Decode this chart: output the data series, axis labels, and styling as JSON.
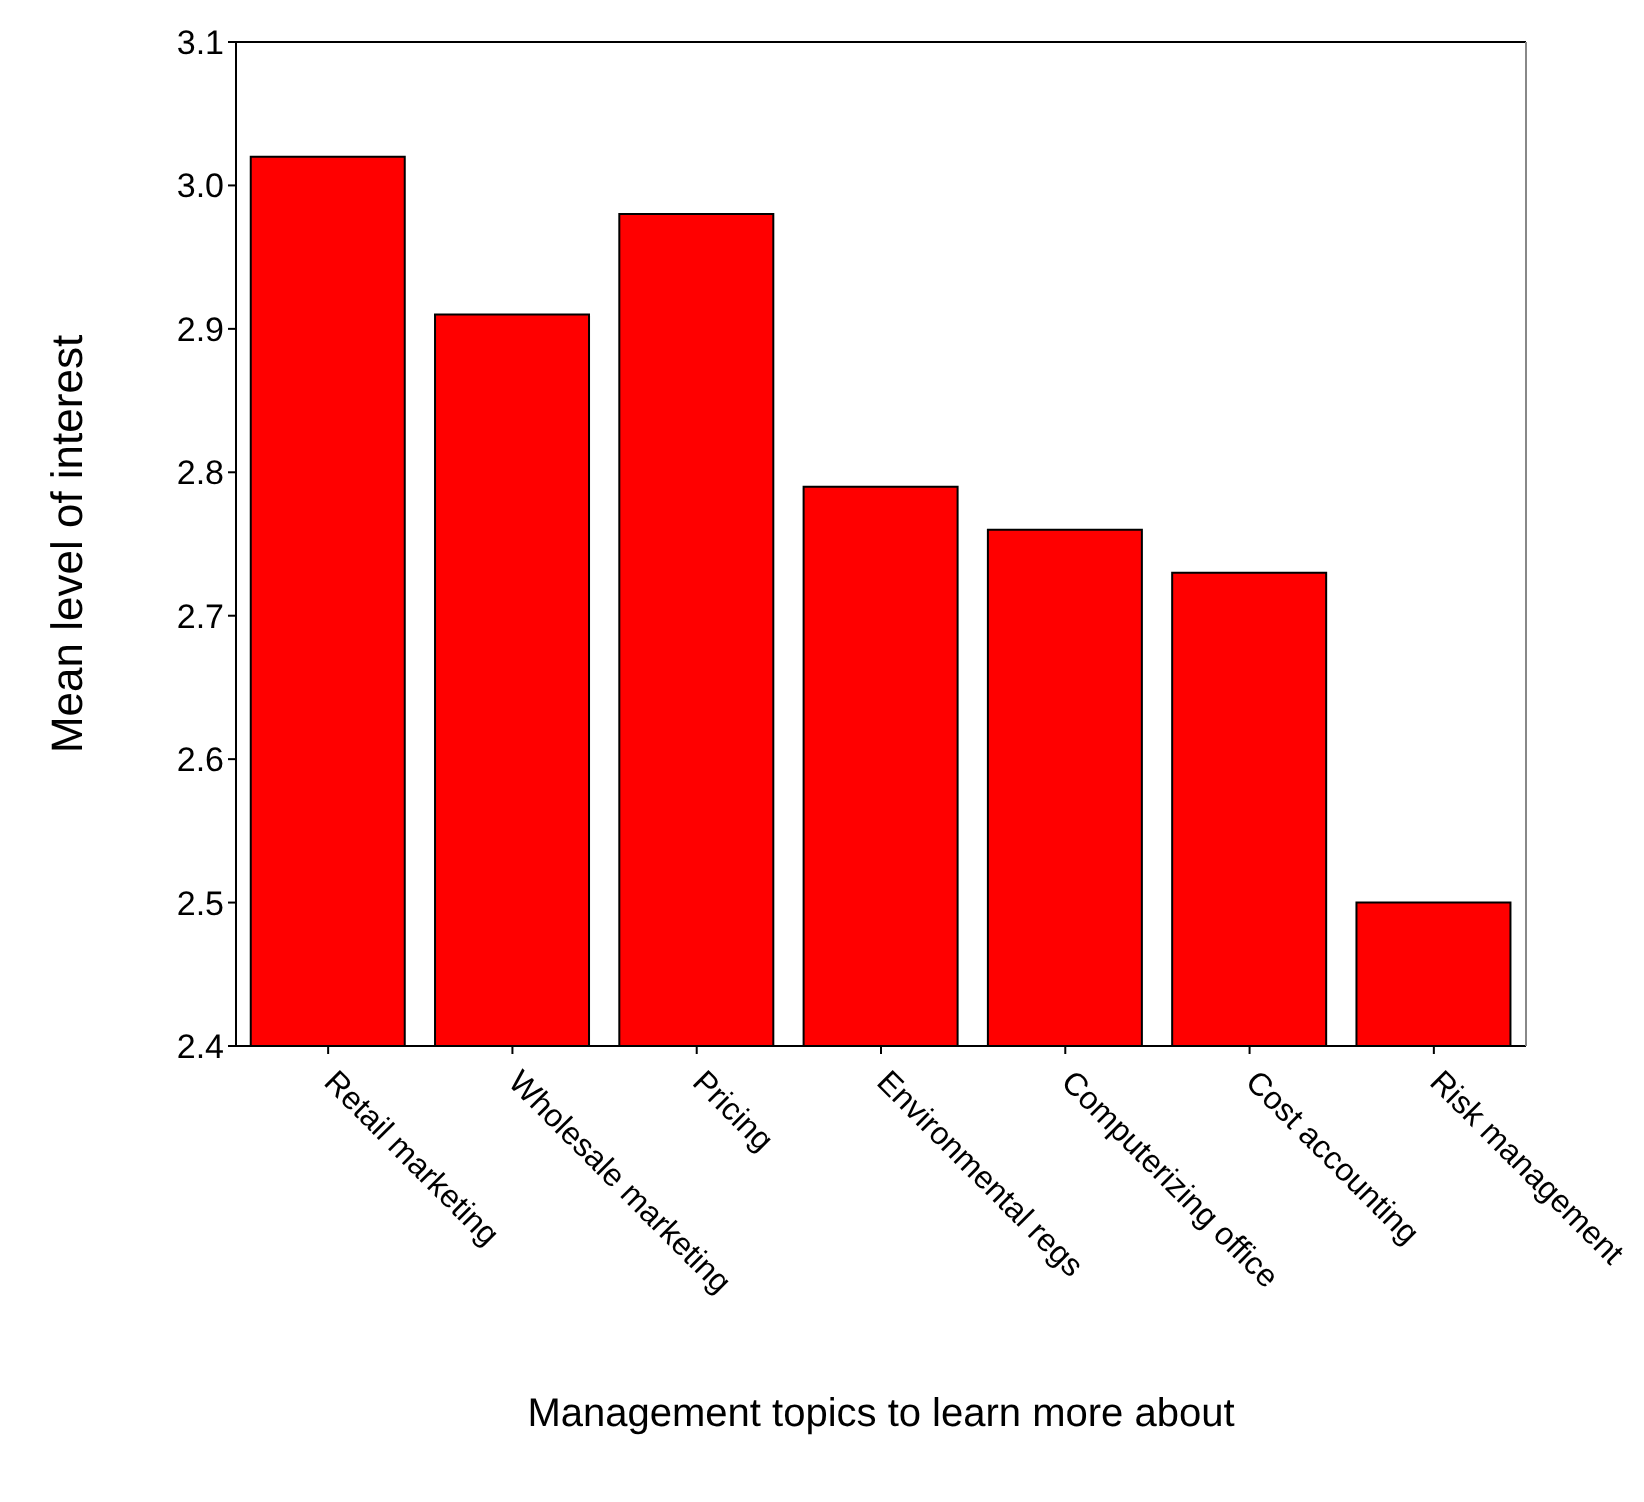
{
  "chart_data": {
    "type": "bar",
    "xlabel": "Management topics to learn more about",
    "ylabel": "Mean level of interest",
    "categories": [
      "Retail marketing",
      "Wholesale marketing",
      "Pricing",
      "Environmental regs",
      "Computerizing office",
      "Cost accounting",
      "Risk management"
    ],
    "values": [
      3.02,
      2.91,
      2.98,
      2.79,
      2.76,
      2.73,
      2.5
    ],
    "color": "#ff0000",
    "ylim": [
      2.4,
      3.1
    ],
    "yticks": [
      2.4,
      2.5,
      2.6,
      2.7,
      2.8,
      2.9,
      {
        "value": 3.0,
        "label": "3.0"
      },
      3.1
    ],
    "grid": false,
    "legend": false
  }
}
